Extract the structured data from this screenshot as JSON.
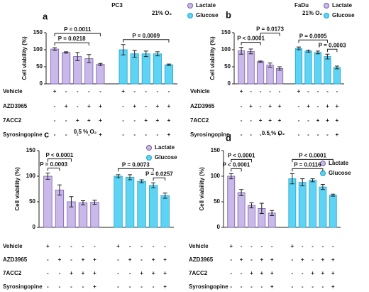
{
  "chart_data": [
    {
      "type": "bar",
      "label": "a",
      "title": "PC3",
      "subtitle": "21% O₂",
      "ylabel": "Cell viability (%)",
      "ylim": [
        0,
        150
      ],
      "yticks": [
        0,
        50,
        100,
        150
      ],
      "series": [
        {
          "name": "Lactate",
          "color": "#c9b8ea",
          "values": [
            102,
            92,
            80,
            74,
            57
          ],
          "errors": [
            4,
            2,
            12,
            12,
            3
          ]
        },
        {
          "name": "Glucose",
          "color": "#5fd3f3",
          "values": [
            100,
            88,
            88,
            88,
            56
          ],
          "errors": [
            15,
            10,
            8,
            6,
            2
          ]
        }
      ],
      "annotations": [
        {
          "text": "P = 0.0218",
          "between": [
            0,
            3
          ]
        },
        {
          "text": "P = 0.0011",
          "between": [
            0,
            4
          ]
        },
        {
          "text": "P = 0.0009",
          "between": [
            5,
            9
          ]
        }
      ],
      "rows": [
        {
          "name": "Vehicle",
          "signs": [
            "+",
            "-",
            "-",
            "-",
            "-",
            "+",
            "-",
            "-",
            "-",
            "-"
          ]
        },
        {
          "name": "AZD3965",
          "signs": [
            "-",
            "+",
            "-",
            "+",
            "+",
            "-",
            "+",
            "-",
            "+",
            "+"
          ]
        },
        {
          "name": "7ACC2",
          "signs": [
            "-",
            "-",
            "+",
            "+",
            "+",
            "-",
            "-",
            "+",
            "+",
            "+"
          ]
        },
        {
          "name": "Syrosingopine",
          "signs": [
            "-",
            "-",
            "-",
            "-",
            "+",
            "-",
            "-",
            "-",
            "-",
            "+"
          ]
        }
      ]
    },
    {
      "type": "bar",
      "label": "b",
      "title": "FaDu",
      "subtitle": "21% O₂",
      "ylabel": "Cell viability (%)",
      "ylim": [
        0,
        150
      ],
      "yticks": [
        0,
        50,
        100,
        150
      ],
      "series": [
        {
          "name": "Lactate",
          "color": "#c9b8ea",
          "values": [
            97,
            95,
            65,
            55,
            45
          ],
          "errors": [
            10,
            7,
            2,
            6,
            5
          ]
        },
        {
          "name": "Glucose",
          "color": "#5fd3f3",
          "values": [
            104,
            96,
            92,
            80,
            48
          ],
          "errors": [
            4,
            3,
            4,
            7,
            4
          ]
        }
      ],
      "annotations": [
        {
          "text": "P < 0.0001",
          "between": [
            0,
            2
          ]
        },
        {
          "text": "P = 0.0173",
          "between": [
            2,
            4
          ]
        },
        {
          "text": "P = 0.0003",
          "between": [
            8,
            9
          ]
        },
        {
          "text": "P = 0.0005",
          "between": [
            5,
            8
          ]
        }
      ],
      "rows": [
        {
          "name": "Vehicle",
          "signs": [
            "+",
            "-",
            "-",
            "-",
            "-",
            "+",
            "-",
            "-",
            "-",
            "-"
          ]
        },
        {
          "name": "AZD3965",
          "signs": [
            "-",
            "+",
            "-",
            "+",
            "+",
            "-",
            "+",
            "-",
            "+",
            "+"
          ]
        },
        {
          "name": "7ACC2",
          "signs": [
            "-",
            "-",
            "+",
            "+",
            "+",
            "-",
            "-",
            "+",
            "+",
            "+"
          ]
        },
        {
          "name": "Syrosingopine",
          "signs": [
            "-",
            "-",
            "-",
            "-",
            "+",
            "-",
            "-",
            "-",
            "-",
            "+"
          ]
        }
      ]
    },
    {
      "type": "bar",
      "label": "c",
      "subtitle": "0.5 % O₂",
      "ylabel": "Cell viability (%)",
      "ylim": [
        0,
        150
      ],
      "yticks": [
        0,
        50,
        100,
        150
      ],
      "series": [
        {
          "name": "Lactate",
          "color": "#c9b8ea",
          "values": [
            100,
            73,
            50,
            48,
            49
          ],
          "errors": [
            6,
            10,
            10,
            4,
            4
          ]
        },
        {
          "name": "Glucose",
          "color": "#5fd3f3",
          "values": [
            100,
            98,
            90,
            82,
            62
          ],
          "errors": [
            3,
            5,
            3,
            5,
            5
          ]
        }
      ],
      "annotations": [
        {
          "text": "P = 0.0003",
          "between": [
            0,
            1
          ]
        },
        {
          "text": "P < 0.0001",
          "between": [
            0,
            2
          ]
        },
        {
          "text": "P = 0.0257",
          "between": [
            8,
            9
          ]
        },
        {
          "text": "P = 0.0073",
          "between": [
            5,
            8
          ]
        }
      ],
      "rows": [
        {
          "name": "Vehicle",
          "signs": [
            "+",
            "-",
            "-",
            "-",
            "-",
            "+",
            "-",
            "-",
            "-",
            "-"
          ]
        },
        {
          "name": "AZD3965",
          "signs": [
            "-",
            "+",
            "-",
            "+",
            "+",
            "-",
            "+",
            "-",
            "+",
            "+"
          ]
        },
        {
          "name": "7ACC2",
          "signs": [
            "-",
            "-",
            "+",
            "+",
            "+",
            "-",
            "-",
            "+",
            "+",
            "+"
          ]
        },
        {
          "name": "Syrosingopine",
          "signs": [
            "-",
            "-",
            "-",
            "-",
            "+",
            "-",
            "-",
            "-",
            "-",
            "+"
          ]
        }
      ]
    },
    {
      "type": "bar",
      "label": "d",
      "subtitle": "0.5 % O₂",
      "ylabel": "Cell viability (%)",
      "ylim": [
        0,
        150
      ],
      "yticks": [
        0,
        50,
        100,
        150
      ],
      "series": [
        {
          "name": "Lactate",
          "color": "#c9b8ea",
          "values": [
            100,
            68,
            43,
            37,
            28
          ],
          "errors": [
            5,
            6,
            5,
            10,
            5
          ]
        },
        {
          "name": "Glucose",
          "color": "#5fd3f3",
          "values": [
            95,
            88,
            92,
            79,
            63
          ],
          "errors": [
            10,
            7,
            3,
            5,
            2
          ]
        }
      ],
      "annotations": [
        {
          "text": "P < 0.0001",
          "between": [
            0,
            1
          ]
        },
        {
          "text": "P < 0.0001",
          "between": [
            0,
            2
          ]
        },
        {
          "text": "P = 0.0116",
          "between": [
            5,
            8
          ]
        },
        {
          "text": "P < 0.0001",
          "between": [
            5,
            9
          ]
        }
      ],
      "rows": [
        {
          "name": "Vehicle",
          "signs": [
            "+",
            "-",
            "-",
            "-",
            "-",
            "+",
            "-",
            "-",
            "-",
            "-"
          ]
        },
        {
          "name": "AZD3965",
          "signs": [
            "-",
            "+",
            "-",
            "+",
            "+",
            "-",
            "+",
            "-",
            "+",
            "+"
          ]
        },
        {
          "name": "7ACC2",
          "signs": [
            "-",
            "-",
            "+",
            "+",
            "+",
            "-",
            "-",
            "+",
            "+",
            "+"
          ]
        },
        {
          "name": "Syrosingopine",
          "signs": [
            "-",
            "-",
            "-",
            "-",
            "+",
            "-",
            "-",
            "-",
            "-",
            "+"
          ]
        }
      ]
    }
  ]
}
